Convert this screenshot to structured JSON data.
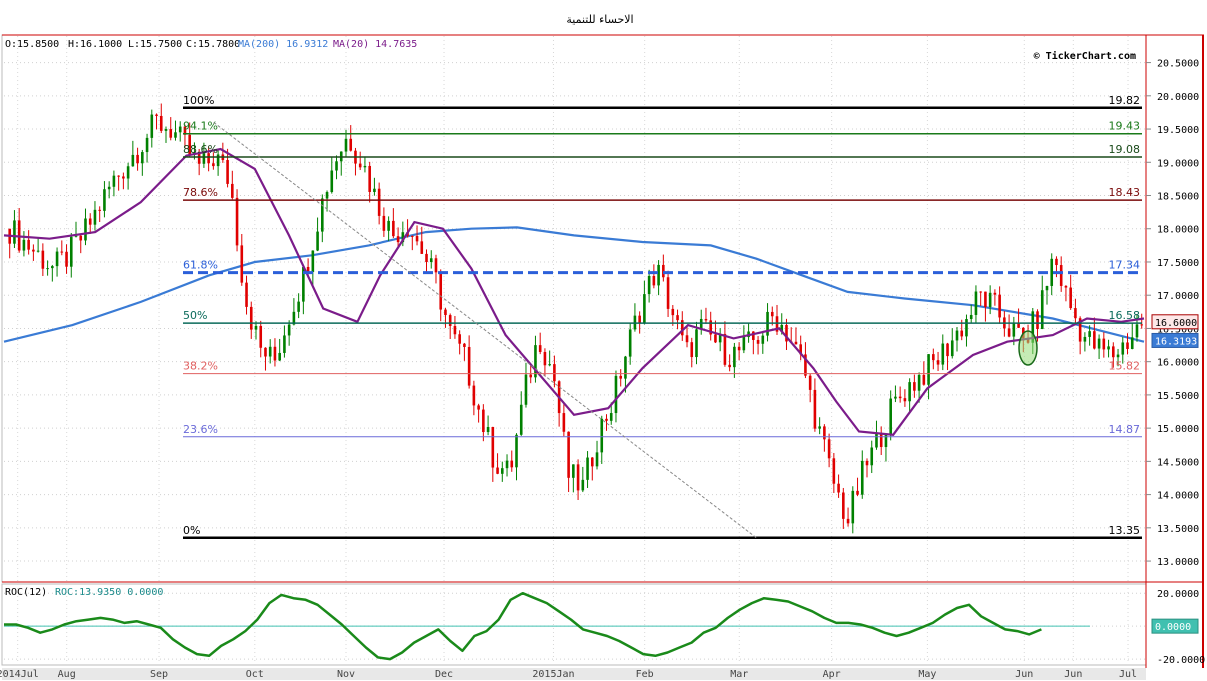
{
  "title": "الاحساء للتنمية",
  "watermark": "© TickerChart.com",
  "ohlc": {
    "o": "O:15.8500",
    "h": "H:16.1000",
    "l": "L:15.7500",
    "c": "C:15.7800"
  },
  "ma_legend": {
    "ma200": "MA(200) 16.9312",
    "ma20": "MA(20) 14.7635"
  },
  "roc_legend": {
    "name": "ROC(12)",
    "value": "ROC:13.9350 0.0000"
  },
  "colors": {
    "up": "#008000",
    "down": "#e00000",
    "ma200": "#3a7bd5",
    "ma20": "#7b1c8a",
    "roc": "#1a8a1a",
    "frame": "#cc0000"
  },
  "chart_data": [
    {
      "type": "candlestick",
      "title": "الاحساء للتنمية",
      "y_axis": {
        "min": 12.7,
        "max": 20.9,
        "ticks": [
          "13.0000",
          "13.5000",
          "14.0000",
          "14.5000",
          "15.0000",
          "15.5000",
          "16.0000",
          "16.5000",
          "17.0000",
          "17.5000",
          "18.0000",
          "18.5000",
          "19.0000",
          "19.5000",
          "20.0000",
          "20.5000"
        ],
        "side": "right"
      },
      "x_axis": {
        "labels": [
          "2014Jul",
          "Aug",
          "Sep",
          "Oct",
          "Nov",
          "Dec",
          "2015Jan",
          "Feb",
          "Mar",
          "Apr",
          "May",
          "Jun",
          "Jun",
          "Jul"
        ],
        "label_pos": [
          0.012,
          0.055,
          0.136,
          0.22,
          0.3,
          0.386,
          0.482,
          0.562,
          0.645,
          0.726,
          0.81,
          0.895,
          0.938,
          0.986
        ]
      },
      "fibonacci": [
        {
          "pct": "100%",
          "value": 19.82,
          "label": "19.82",
          "color": "#000000",
          "width": 2.5
        },
        {
          "pct": "94.1%",
          "value": 19.43,
          "label": "19.43",
          "color": "#1a7a1a",
          "width": 1.5
        },
        {
          "pct": "88.6%",
          "value": 19.08,
          "label": "19.08",
          "color": "#1a4a1a",
          "width": 1.5
        },
        {
          "pct": "78.6%",
          "value": 18.43,
          "label": "18.43",
          "color": "#7a0a0a",
          "width": 1.5
        },
        {
          "pct": "61.8%",
          "value": 17.34,
          "label": "17.34",
          "color": "#2b5fd9",
          "width": 3,
          "dash": true
        },
        {
          "pct": "50%",
          "value": 16.58,
          "label": "16.58",
          "color": "#0a6a5a",
          "width": 1.5
        },
        {
          "pct": "38.2%",
          "value": 15.82,
          "label": "15.82",
          "color": "#e06060",
          "width": 1
        },
        {
          "pct": "23.6%",
          "value": 14.87,
          "label": "14.87",
          "color": "#6a6ad9",
          "width": 1
        },
        {
          "pct": "0%",
          "value": 13.35,
          "label": "13.35",
          "color": "#000000",
          "width": 2.5
        }
      ],
      "price_tags": [
        {
          "value": 16.6,
          "label": "16.6000",
          "bg": "#fde8e8",
          "fg": "#000000",
          "border": "#aa0000"
        },
        {
          "value": 16.3193,
          "label": "16.3193",
          "bg": "#3a7bd5",
          "fg": "#ffffff",
          "border": "#2a5ba5"
        }
      ],
      "trendline": {
        "from": [
          0.184,
          19.6
        ],
        "to": [
          0.66,
          13.35
        ]
      },
      "ma200_path": [
        [
          0.0,
          16.3
        ],
        [
          0.06,
          16.55
        ],
        [
          0.12,
          16.9
        ],
        [
          0.18,
          17.3
        ],
        [
          0.22,
          17.5
        ],
        [
          0.27,
          17.6
        ],
        [
          0.32,
          17.75
        ],
        [
          0.37,
          17.95
        ],
        [
          0.41,
          18.0
        ],
        [
          0.45,
          18.02
        ],
        [
          0.5,
          17.9
        ],
        [
          0.56,
          17.8
        ],
        [
          0.62,
          17.75
        ],
        [
          0.66,
          17.55
        ],
        [
          0.7,
          17.3
        ],
        [
          0.74,
          17.05
        ],
        [
          0.79,
          16.95
        ],
        [
          0.85,
          16.85
        ],
        [
          0.92,
          16.65
        ],
        [
          1.0,
          16.3
        ]
      ],
      "ma20_path": [
        [
          0.0,
          17.9
        ],
        [
          0.04,
          17.85
        ],
        [
          0.08,
          17.95
        ],
        [
          0.12,
          18.4
        ],
        [
          0.16,
          19.1
        ],
        [
          0.19,
          19.2
        ],
        [
          0.22,
          18.9
        ],
        [
          0.25,
          17.9
        ],
        [
          0.28,
          16.8
        ],
        [
          0.31,
          16.6
        ],
        [
          0.33,
          17.3
        ],
        [
          0.36,
          18.1
        ],
        [
          0.385,
          18.0
        ],
        [
          0.41,
          17.4
        ],
        [
          0.44,
          16.4
        ],
        [
          0.47,
          15.8
        ],
        [
          0.5,
          15.2
        ],
        [
          0.53,
          15.3
        ],
        [
          0.56,
          15.9
        ],
        [
          0.6,
          16.55
        ],
        [
          0.64,
          16.35
        ],
        [
          0.68,
          16.5
        ],
        [
          0.71,
          15.9
        ],
        [
          0.73,
          15.4
        ],
        [
          0.75,
          14.95
        ],
        [
          0.78,
          14.9
        ],
        [
          0.81,
          15.6
        ],
        [
          0.85,
          16.1
        ],
        [
          0.88,
          16.3
        ],
        [
          0.92,
          16.4
        ],
        [
          0.95,
          16.65
        ],
        [
          0.98,
          16.6
        ],
        [
          1.0,
          16.65
        ]
      ],
      "candle_series": [
        18.0,
        17.8,
        17.6,
        17.4,
        17.6,
        17.9,
        18.3,
        18.7,
        19.0,
        19.3,
        19.6,
        19.5,
        19.2,
        18.9,
        19.1,
        18.7,
        17.0,
        16.2,
        16.0,
        16.7,
        17.3,
        18.2,
        19.0,
        19.4,
        19.0,
        18.4,
        17.9,
        18.1,
        17.7,
        17.2,
        16.4,
        16.0,
        15.2,
        14.5,
        14.3,
        15.5,
        16.4,
        15.8,
        14.3,
        14.1,
        14.9,
        15.4,
        16.2,
        16.9,
        17.4,
        16.8,
        16.1,
        16.5,
        16.3,
        16.1,
        16.2,
        16.4,
        16.7,
        16.4,
        15.9,
        15.0,
        14.2,
        13.6,
        14.3,
        14.8,
        15.3,
        15.6,
        15.8,
        16.0,
        16.3,
        16.6,
        17.0,
        16.8,
        16.5,
        16.3,
        16.7,
        17.6,
        16.9,
        16.4,
        16.2,
        16.1,
        16.3,
        16.6
      ],
      "candle_span": [
        0.005,
        0.998
      ]
    },
    {
      "type": "line",
      "title": "ROC(12)",
      "y_axis": {
        "min": -23,
        "max": 25,
        "ticks": [
          "20.0000",
          "0.0000",
          "-20.0000"
        ],
        "side": "right"
      },
      "zero_tag": "0.0000",
      "series": [
        {
          "name": "ROC",
          "values": [
            1,
            1,
            -1,
            -4,
            -2,
            1,
            3,
            4,
            5,
            4,
            2,
            3,
            1,
            -1,
            -8,
            -13,
            -17,
            -18,
            -12,
            -8,
            -3,
            4,
            14,
            19,
            17,
            16,
            13,
            7,
            1,
            -6,
            -13,
            -19,
            -20,
            -16,
            -10,
            -6,
            -2,
            -9,
            -15,
            -6,
            -3,
            4,
            16,
            20,
            17,
            14,
            9,
            4,
            -2,
            -4,
            -6,
            -9,
            -13,
            -17,
            -18,
            -16,
            -13,
            -10,
            -4,
            -1,
            5,
            10,
            14,
            17,
            16,
            15,
            12,
            9,
            5,
            2,
            2,
            1,
            -1,
            -4,
            -6,
            -4,
            -1,
            2,
            7,
            11,
            13,
            6,
            2,
            -2,
            -3,
            -5,
            -2
          ]
        }
      ]
    }
  ]
}
